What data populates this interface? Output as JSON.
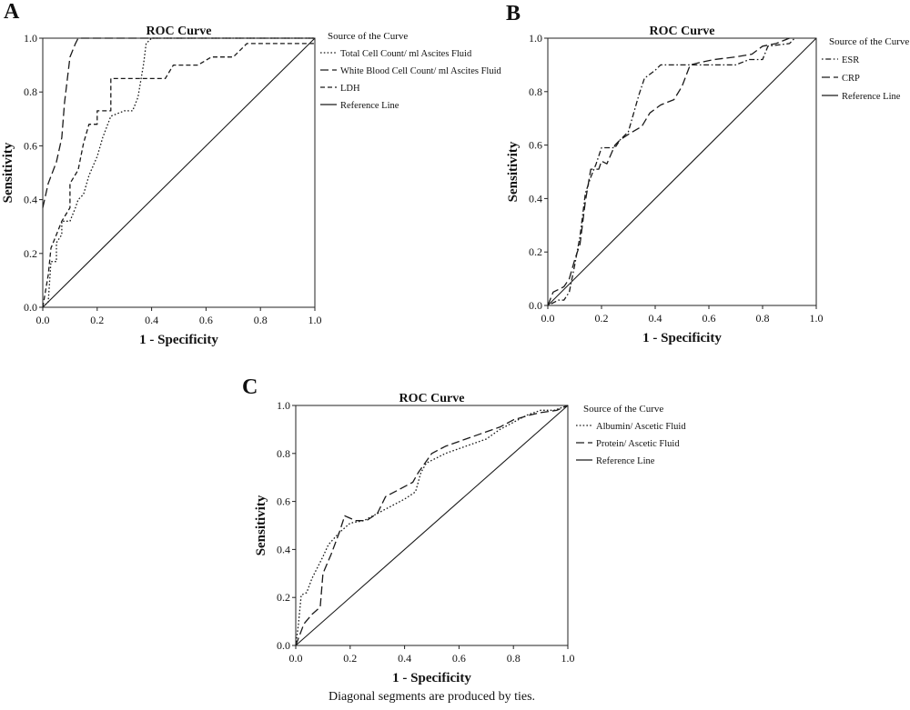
{
  "chart_data": [
    {
      "panel_label": "A",
      "type": "line",
      "title": "ROC Curve",
      "xlabel": "1 - Specificity",
      "ylabel": "Sensitivity",
      "xlim": [
        0,
        1
      ],
      "ylim": [
        0,
        1
      ],
      "x_ticks": [
        "0.0",
        "0.2",
        "0.4",
        "0.6",
        "0.8",
        "1.0"
      ],
      "y_ticks": [
        "0.0",
        "0.2",
        "0.4",
        "0.6",
        "0.8",
        "1.0"
      ],
      "grid": false,
      "legend_title": "Source of the Curve",
      "legend_position": "right",
      "series": [
        {
          "name": "Total Cell Count/ ml Ascites Fluid",
          "style": "dotted",
          "points": [
            [
              0,
              0
            ],
            [
              0.02,
              0.02
            ],
            [
              0.03,
              0.17
            ],
            [
              0.05,
              0.17
            ],
            [
              0.05,
              0.24
            ],
            [
              0.07,
              0.27
            ],
            [
              0.07,
              0.32
            ],
            [
              0.1,
              0.32
            ],
            [
              0.12,
              0.37
            ],
            [
              0.13,
              0.4
            ],
            [
              0.15,
              0.42
            ],
            [
              0.17,
              0.49
            ],
            [
              0.2,
              0.56
            ],
            [
              0.22,
              0.63
            ],
            [
              0.25,
              0.71
            ],
            [
              0.3,
              0.73
            ],
            [
              0.33,
              0.73
            ],
            [
              0.35,
              0.78
            ],
            [
              0.37,
              0.9
            ],
            [
              0.38,
              0.98
            ],
            [
              0.4,
              1.0
            ],
            [
              1,
              1.0
            ]
          ]
        },
        {
          "name": "White Blood Cell Count/ ml Ascites Fluid",
          "style": "dashed",
          "points": [
            [
              0,
              0.37
            ],
            [
              0.02,
              0.46
            ],
            [
              0.05,
              0.54
            ],
            [
              0.07,
              0.63
            ],
            [
              0.08,
              0.76
            ],
            [
              0.1,
              0.93
            ],
            [
              0.12,
              0.98
            ],
            [
              0.13,
              1.0
            ],
            [
              1,
              1.0
            ]
          ]
        },
        {
          "name": "LDH",
          "style": "shortdash",
          "points": [
            [
              0,
              0
            ],
            [
              0.02,
              0.12
            ],
            [
              0.03,
              0.22
            ],
            [
              0.05,
              0.27
            ],
            [
              0.07,
              0.32
            ],
            [
              0.1,
              0.37
            ],
            [
              0.1,
              0.46
            ],
            [
              0.13,
              0.51
            ],
            [
              0.15,
              0.61
            ],
            [
              0.17,
              0.68
            ],
            [
              0.2,
              0.68
            ],
            [
              0.2,
              0.73
            ],
            [
              0.25,
              0.73
            ],
            [
              0.25,
              0.85
            ],
            [
              0.38,
              0.85
            ],
            [
              0.38,
              0.85
            ],
            [
              0.45,
              0.85
            ],
            [
              0.48,
              0.9
            ],
            [
              0.57,
              0.9
            ],
            [
              0.62,
              0.93
            ],
            [
              0.7,
              0.93
            ],
            [
              0.75,
              0.98
            ],
            [
              1,
              0.98
            ]
          ]
        },
        {
          "name": "Reference Line",
          "style": "solid",
          "points": [
            [
              0,
              0
            ],
            [
              1,
              1
            ]
          ]
        }
      ]
    },
    {
      "panel_label": "B",
      "type": "line",
      "title": "ROC Curve",
      "xlabel": "1 - Specificity",
      "ylabel": "Sensitivity",
      "xlim": [
        0,
        1
      ],
      "ylim": [
        0,
        1
      ],
      "x_ticks": [
        "0.0",
        "0.2",
        "0.4",
        "0.6",
        "0.8",
        "1.0"
      ],
      "y_ticks": [
        "0.0",
        "0.2",
        "0.4",
        "0.6",
        "0.8",
        "1.0"
      ],
      "grid": false,
      "legend_title": "Source of the Curve",
      "legend_position": "right",
      "series": [
        {
          "name": "ESR",
          "style": "dotdash",
          "points": [
            [
              0,
              0
            ],
            [
              0.04,
              0.02
            ],
            [
              0.06,
              0.02
            ],
            [
              0.08,
              0.05
            ],
            [
              0.1,
              0.15
            ],
            [
              0.12,
              0.26
            ],
            [
              0.14,
              0.42
            ],
            [
              0.16,
              0.48
            ],
            [
              0.18,
              0.53
            ],
            [
              0.2,
              0.59
            ],
            [
              0.22,
              0.59
            ],
            [
              0.25,
              0.59
            ],
            [
              0.27,
              0.62
            ],
            [
              0.3,
              0.65
            ],
            [
              0.32,
              0.72
            ],
            [
              0.34,
              0.79
            ],
            [
              0.36,
              0.85
            ],
            [
              0.4,
              0.88
            ],
            [
              0.42,
              0.9
            ],
            [
              0.6,
              0.9
            ],
            [
              0.7,
              0.9
            ],
            [
              0.75,
              0.92
            ],
            [
              0.8,
              0.92
            ],
            [
              0.82,
              0.97
            ],
            [
              0.9,
              0.98
            ],
            [
              0.92,
              1.0
            ]
          ]
        },
        {
          "name": "CRP",
          "style": "dashed",
          "points": [
            [
              0,
              0
            ],
            [
              0.02,
              0.05
            ],
            [
              0.06,
              0.07
            ],
            [
              0.08,
              0.1
            ],
            [
              0.1,
              0.17
            ],
            [
              0.12,
              0.23
            ],
            [
              0.14,
              0.39
            ],
            [
              0.16,
              0.51
            ],
            [
              0.19,
              0.51
            ],
            [
              0.2,
              0.54
            ],
            [
              0.22,
              0.53
            ],
            [
              0.25,
              0.6
            ],
            [
              0.27,
              0.62
            ],
            [
              0.3,
              0.64
            ],
            [
              0.35,
              0.67
            ],
            [
              0.38,
              0.72
            ],
            [
              0.42,
              0.75
            ],
            [
              0.47,
              0.77
            ],
            [
              0.5,
              0.82
            ],
            [
              0.53,
              0.9
            ],
            [
              0.57,
              0.91
            ],
            [
              0.62,
              0.92
            ],
            [
              0.7,
              0.93
            ],
            [
              0.76,
              0.94
            ],
            [
              0.8,
              0.97
            ],
            [
              0.85,
              0.98
            ],
            [
              0.9,
              1.0
            ]
          ]
        },
        {
          "name": "Reference Line",
          "style": "solid",
          "points": [
            [
              0,
              0
            ],
            [
              1,
              1
            ]
          ]
        }
      ]
    },
    {
      "panel_label": "C",
      "type": "line",
      "title": "ROC Curve",
      "xlabel": "1 - Specificity",
      "ylabel": "Sensitivity",
      "xlim": [
        0,
        1
      ],
      "ylim": [
        0,
        1
      ],
      "x_ticks": [
        "0.0",
        "0.2",
        "0.4",
        "0.6",
        "0.8",
        "1.0"
      ],
      "y_ticks": [
        "0.0",
        "0.2",
        "0.4",
        "0.6",
        "0.8",
        "1.0"
      ],
      "grid": false,
      "legend_title": "Source of the Curve",
      "legend_position": "right",
      "footnote": "Diagonal segments are produced by ties.",
      "series": [
        {
          "name": "Albumin/ Ascetic Fluid",
          "style": "dotted",
          "points": [
            [
              0,
              0
            ],
            [
              0.01,
              0.09
            ],
            [
              0.02,
              0.21
            ],
            [
              0.04,
              0.22
            ],
            [
              0.06,
              0.28
            ],
            [
              0.1,
              0.37
            ],
            [
              0.12,
              0.42
            ],
            [
              0.16,
              0.47
            ],
            [
              0.2,
              0.51
            ],
            [
              0.25,
              0.52
            ],
            [
              0.3,
              0.55
            ],
            [
              0.35,
              0.58
            ],
            [
              0.4,
              0.61
            ],
            [
              0.44,
              0.64
            ],
            [
              0.46,
              0.72
            ],
            [
              0.48,
              0.76
            ],
            [
              0.55,
              0.8
            ],
            [
              0.6,
              0.82
            ],
            [
              0.65,
              0.84
            ],
            [
              0.7,
              0.86
            ],
            [
              0.75,
              0.9
            ],
            [
              0.8,
              0.93
            ],
            [
              0.85,
              0.96
            ],
            [
              0.9,
              0.98
            ],
            [
              0.95,
              0.98
            ],
            [
              1,
              1.0
            ]
          ]
        },
        {
          "name": "Protein/ Ascetic Fluid",
          "style": "dashed",
          "points": [
            [
              0,
              0
            ],
            [
              0.03,
              0.09
            ],
            [
              0.06,
              0.13
            ],
            [
              0.09,
              0.16
            ],
            [
              0.1,
              0.3
            ],
            [
              0.13,
              0.38
            ],
            [
              0.16,
              0.47
            ],
            [
              0.18,
              0.54
            ],
            [
              0.22,
              0.52
            ],
            [
              0.26,
              0.52
            ],
            [
              0.3,
              0.55
            ],
            [
              0.33,
              0.62
            ],
            [
              0.38,
              0.65
            ],
            [
              0.43,
              0.68
            ],
            [
              0.45,
              0.72
            ],
            [
              0.5,
              0.8
            ],
            [
              0.55,
              0.83
            ],
            [
              0.6,
              0.85
            ],
            [
              0.65,
              0.87
            ],
            [
              0.7,
              0.89
            ],
            [
              0.75,
              0.91
            ],
            [
              0.8,
              0.94
            ],
            [
              0.86,
              0.96
            ],
            [
              0.9,
              0.97
            ],
            [
              0.96,
              0.98
            ],
            [
              1,
              1.0
            ]
          ]
        },
        {
          "name": "Reference Line",
          "style": "solid",
          "points": [
            [
              0,
              0
            ],
            [
              1,
              1
            ]
          ]
        }
      ]
    }
  ]
}
